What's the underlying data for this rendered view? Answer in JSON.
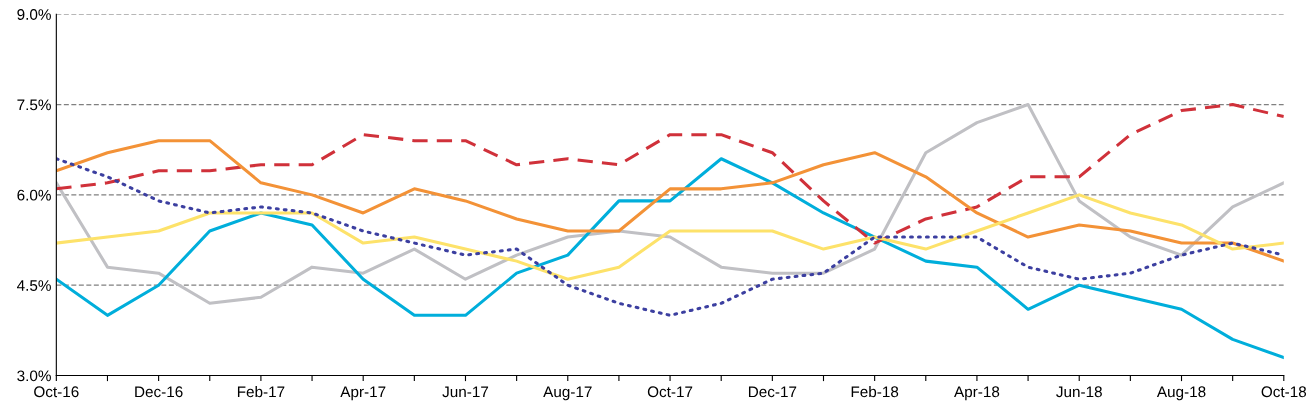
{
  "chart_data": {
    "type": "line",
    "categories": [
      "Oct-16",
      null,
      "Dec-16",
      null,
      "Feb-17",
      null,
      "Apr-17",
      null,
      "Jun-17",
      null,
      "Aug-17",
      null,
      "Oct-17",
      null,
      "Dec-17",
      null,
      "Feb-18",
      null,
      "Apr-18",
      null,
      "Jun-18",
      null,
      "Aug-18",
      null,
      "Oct-18"
    ],
    "ylim": [
      3.0,
      9.0
    ],
    "yticks": [
      {
        "value": 3.0,
        "label": "3.0%"
      },
      {
        "value": 4.5,
        "label": "4.5%"
      },
      {
        "value": 6.0,
        "label": "6.0%"
      },
      {
        "value": 7.5,
        "label": "7.5%"
      },
      {
        "value": 9.0,
        "label": "9.0%"
      }
    ],
    "grid": "y",
    "marker": "none",
    "series": [
      {
        "color": "#c0c0c4",
        "line_style": "solid",
        "values": [
          6.2,
          4.8,
          4.7,
          4.2,
          4.3,
          4.8,
          4.7,
          5.1,
          4.6,
          5.0,
          5.3,
          5.4,
          5.3,
          4.8,
          4.7,
          4.7,
          5.1,
          6.7,
          7.2,
          7.5,
          5.9,
          5.3,
          5.0,
          5.8,
          6.2
        ]
      },
      {
        "color": "#00aedb",
        "line_style": "solid",
        "values": [
          4.6,
          4.0,
          4.5,
          5.4,
          5.7,
          5.5,
          4.6,
          4.0,
          4.0,
          4.7,
          5.0,
          5.9,
          5.9,
          6.6,
          6.2,
          5.7,
          5.3,
          4.9,
          4.8,
          4.1,
          4.5,
          4.3,
          4.1,
          3.6,
          3.3
        ]
      },
      {
        "color": "#d0313a",
        "line_style": "dashed",
        "values": [
          6.1,
          6.2,
          6.4,
          6.4,
          6.5,
          6.5,
          7.0,
          6.9,
          6.9,
          6.5,
          6.6,
          6.5,
          7.0,
          7.0,
          6.7,
          5.9,
          5.2,
          5.6,
          5.8,
          6.3,
          6.3,
          7.0,
          7.4,
          7.5,
          7.3
        ]
      },
      {
        "color": "#f39237",
        "line_style": "solid",
        "values": [
          6.4,
          6.7,
          6.9,
          6.9,
          6.2,
          6.0,
          5.7,
          6.1,
          5.9,
          5.6,
          5.4,
          5.4,
          6.1,
          6.1,
          6.2,
          6.5,
          6.7,
          6.3,
          5.7,
          5.3,
          5.5,
          5.4,
          5.2,
          5.2,
          4.9
        ]
      },
      {
        "color": "#fde26a",
        "line_style": "solid",
        "values": [
          5.2,
          5.3,
          5.4,
          5.7,
          5.7,
          5.7,
          5.2,
          5.3,
          5.1,
          4.9,
          4.6,
          4.8,
          5.4,
          5.4,
          5.4,
          5.1,
          5.3,
          5.1,
          5.4,
          5.7,
          6.0,
          5.7,
          5.5,
          5.1,
          5.2
        ]
      },
      {
        "color": "#3c3fa0",
        "line_style": "dotted",
        "values": [
          6.6,
          6.3,
          5.9,
          5.7,
          5.8,
          5.7,
          5.4,
          5.2,
          5.0,
          5.1,
          4.5,
          4.2,
          4.0,
          4.2,
          4.6,
          4.7,
          5.3,
          5.3,
          5.3,
          4.8,
          4.6,
          4.7,
          5.0,
          5.2,
          5.0
        ]
      }
    ]
  }
}
